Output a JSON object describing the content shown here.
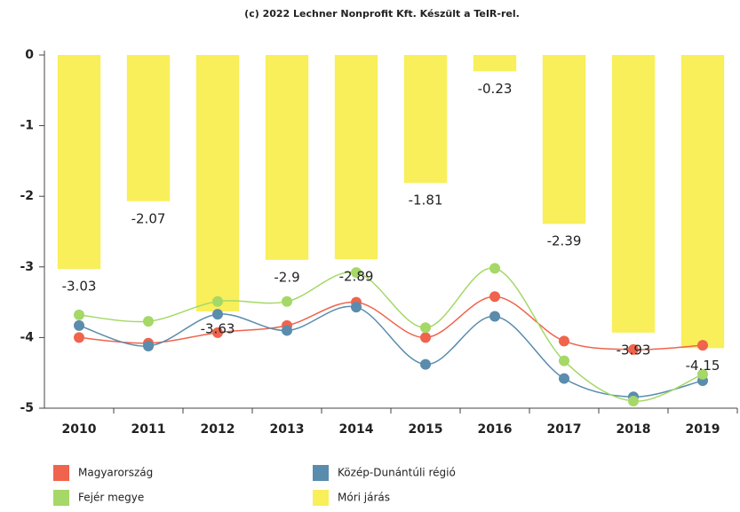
{
  "chart_data": {
    "type": "combo",
    "title": "(c) 2022 Lechner Nonprofit Kft. Készült a TeIR-rel.",
    "categories": [
      "2010",
      "2011",
      "2012",
      "2013",
      "2014",
      "2015",
      "2016",
      "2017",
      "2018",
      "2019"
    ],
    "ylim": [
      -5,
      0
    ],
    "yticks": [
      0,
      -1,
      -2,
      -3,
      -4,
      -5
    ],
    "series": [
      {
        "name": "Magyarország",
        "type": "line",
        "color": "#f0634c",
        "values": [
          -4.0,
          -4.08,
          -3.93,
          -3.83,
          -3.5,
          -4.0,
          -3.42,
          -4.05,
          -4.17,
          -4.11
        ]
      },
      {
        "name": "Közép-Dunántúli régió",
        "type": "line",
        "color": "#5a8cad",
        "values": [
          -3.83,
          -4.12,
          -3.67,
          -3.9,
          -3.57,
          -4.38,
          -3.7,
          -4.58,
          -4.84,
          -4.61
        ]
      },
      {
        "name": "Fejér megye",
        "type": "line",
        "color": "#a5d867",
        "values": [
          -3.68,
          -3.77,
          -3.49,
          -3.49,
          -3.08,
          -3.86,
          -3.02,
          -4.33,
          -4.9,
          -4.52
        ]
      },
      {
        "name": "Móri járás",
        "type": "bar",
        "color": "#f8ef5a",
        "values": [
          -3.03,
          -2.07,
          -3.63,
          -2.9,
          -2.89,
          -1.81,
          -0.23,
          -2.39,
          -3.93,
          -4.15
        ]
      }
    ]
  }
}
